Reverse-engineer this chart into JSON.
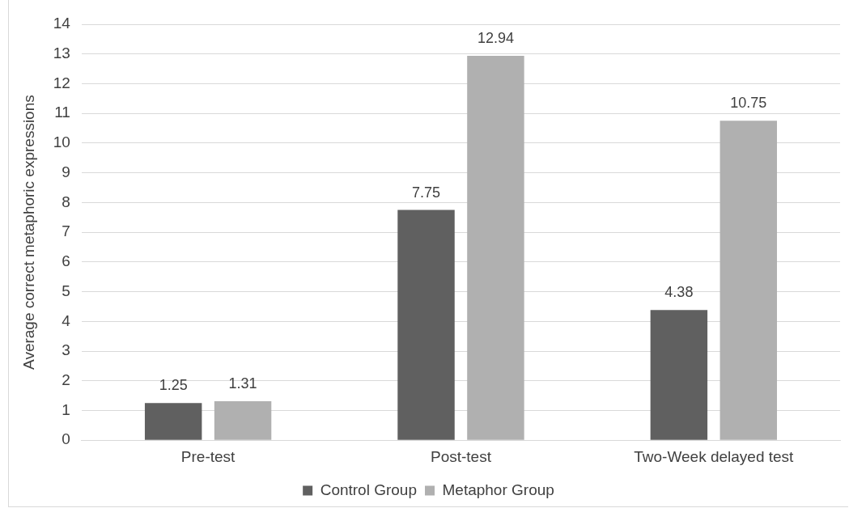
{
  "chart_data": {
    "type": "bar",
    "ylabel": "Average correct metaphoric expressions",
    "categories": [
      "Pre-test",
      "Post-test",
      "Two-Week delayed test"
    ],
    "series": [
      {
        "name": "Control Group",
        "color": "#606060",
        "values": [
          1.25,
          7.75,
          4.38
        ]
      },
      {
        "name": "Metaphor Group",
        "color": "#b0b0b0",
        "values": [
          1.31,
          12.94,
          10.75
        ]
      }
    ],
    "ylim": [
      0,
      14
    ],
    "yticks": [
      0,
      1,
      2,
      3,
      4,
      5,
      6,
      7,
      8,
      9,
      10,
      11,
      12,
      13,
      14
    ],
    "grid": "y",
    "legend": "bottom",
    "data_labels": true
  }
}
